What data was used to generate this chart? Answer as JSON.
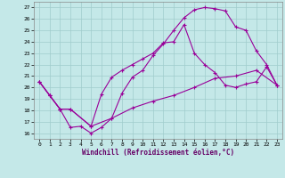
{
  "xlabel": "Windchill (Refroidissement éolien,°C)",
  "bg_color": "#c4e8e8",
  "grid_color": "#a0cccc",
  "line_color": "#990099",
  "ylim": [
    15.5,
    27.5
  ],
  "xlim": [
    -0.5,
    23.5
  ],
  "yticks": [
    16,
    17,
    18,
    19,
    20,
    21,
    22,
    23,
    24,
    25,
    26,
    27
  ],
  "xticks": [
    0,
    1,
    2,
    3,
    4,
    5,
    6,
    7,
    8,
    9,
    10,
    11,
    12,
    13,
    14,
    15,
    16,
    17,
    18,
    19,
    20,
    21,
    22,
    23
  ],
  "line1_x": [
    0,
    1,
    2,
    3,
    4,
    5,
    6,
    7,
    8,
    9,
    10,
    11,
    12,
    13,
    14,
    15,
    16,
    17,
    18,
    19,
    20,
    21,
    22,
    23
  ],
  "line1_y": [
    20.5,
    19.3,
    18.1,
    16.5,
    16.6,
    16.0,
    16.5,
    17.3,
    19.5,
    20.9,
    21.5,
    22.8,
    23.8,
    25.0,
    26.1,
    26.8,
    27.0,
    26.9,
    26.7,
    25.3,
    25.0,
    23.2,
    22.0,
    20.2
  ],
  "line2_x": [
    0,
    1,
    2,
    3,
    5,
    6,
    7,
    8,
    9,
    10,
    11,
    12,
    13,
    14,
    15,
    16,
    17,
    18,
    19,
    20,
    21,
    22,
    23
  ],
  "line2_y": [
    20.5,
    19.3,
    18.1,
    18.1,
    16.6,
    19.4,
    20.9,
    21.5,
    22.0,
    22.5,
    23.0,
    23.9,
    24.0,
    25.5,
    23.0,
    22.0,
    21.3,
    20.2,
    20.0,
    20.3,
    20.5,
    21.8,
    20.2
  ],
  "line3_x": [
    0,
    1,
    2,
    3,
    5,
    7,
    9,
    11,
    13,
    15,
    17,
    19,
    21,
    23
  ],
  "line3_y": [
    20.5,
    19.3,
    18.1,
    18.1,
    16.6,
    17.3,
    18.2,
    18.8,
    19.3,
    20.0,
    20.8,
    21.0,
    21.5,
    20.2
  ]
}
